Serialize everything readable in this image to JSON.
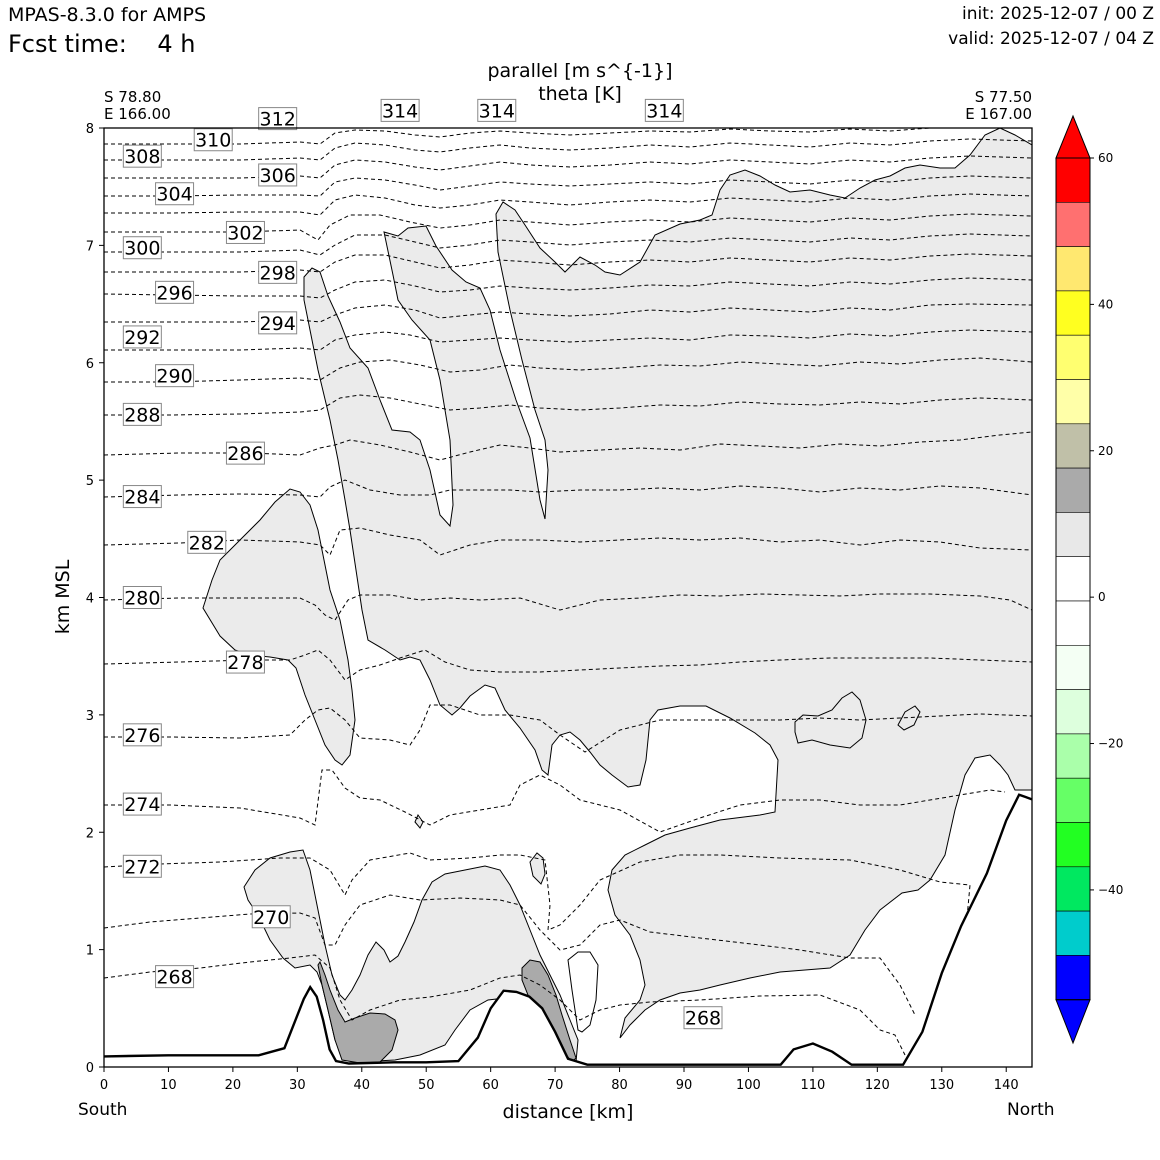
{
  "header": {
    "app": "MPAS-8.3.0 for AMPS",
    "fcst": "Fcst time:    4 h",
    "init": "init: 2025-12-07 / 00 Z",
    "valid": "valid: 2025-12-07 / 04 Z"
  },
  "cross_section": {
    "start_lat": "S 78.80",
    "start_lon": "E 166.00",
    "end_lat": "S 77.50",
    "end_lon": "E 167.00",
    "south_label": "South",
    "north_label": "North"
  },
  "chart_data": {
    "type": "cross-section contour",
    "title_line1": "parallel [m s^{-1}]",
    "title_line2": "theta [K]",
    "xlabel": "distance [km]",
    "ylabel": "km MSL",
    "xlim": [
      0,
      144
    ],
    "ylim": [
      0,
      8
    ],
    "xticks": [
      0,
      10,
      20,
      30,
      40,
      50,
      60,
      70,
      80,
      90,
      100,
      110,
      120,
      130,
      140
    ],
    "yticks": [
      0,
      1,
      2,
      3,
      4,
      5,
      6,
      7,
      8
    ],
    "theta_contour_labels": [
      {
        "label": "268",
        "x": 8,
        "y": 0.77
      },
      {
        "label": "268",
        "x": 90,
        "y": 0.42
      },
      {
        "label": "270",
        "x": 23,
        "y": 1.28
      },
      {
        "label": "272",
        "x": 3,
        "y": 1.71
      },
      {
        "label": "274",
        "x": 3,
        "y": 2.24
      },
      {
        "label": "276",
        "x": 3,
        "y": 2.83
      },
      {
        "label": "278",
        "x": 19,
        "y": 3.45
      },
      {
        "label": "280",
        "x": 3,
        "y": 4.0
      },
      {
        "label": "282",
        "x": 13,
        "y": 4.47
      },
      {
        "label": "284",
        "x": 3,
        "y": 4.86
      },
      {
        "label": "286",
        "x": 19,
        "y": 5.23
      },
      {
        "label": "288",
        "x": 3,
        "y": 5.56
      },
      {
        "label": "290",
        "x": 8,
        "y": 5.89
      },
      {
        "label": "292",
        "x": 3,
        "y": 6.22
      },
      {
        "label": "294",
        "x": 24,
        "y": 6.34
      },
      {
        "label": "296",
        "x": 8,
        "y": 6.6
      },
      {
        "label": "298",
        "x": 24,
        "y": 6.77
      },
      {
        "label": "300",
        "x": 3,
        "y": 6.98
      },
      {
        "label": "302",
        "x": 19,
        "y": 7.11
      },
      {
        "label": "304",
        "x": 8,
        "y": 7.44
      },
      {
        "label": "306",
        "x": 24,
        "y": 7.6
      },
      {
        "label": "308",
        "x": 3,
        "y": 7.76
      },
      {
        "label": "310",
        "x": 14,
        "y": 7.9
      },
      {
        "label": "312",
        "x": 24,
        "y": 8.08
      },
      {
        "label": "314",
        "x": 43,
        "y": 8.15
      },
      {
        "label": "314",
        "x": 58,
        "y": 8.15
      },
      {
        "label": "314",
        "x": 84,
        "y": 8.15
      }
    ],
    "colorbar": {
      "ticks": [
        "60",
        "40",
        "20",
        "0",
        "−20",
        "−40"
      ],
      "colors": [
        "#ff0000",
        "#ff0000",
        "#ff7070",
        "#ffe870",
        "#ffff20",
        "#ffff70",
        "#ffffa8",
        "#c0c0a8",
        "#aaaaaa",
        "#e8e8e8",
        "#ffffff",
        "#ffffff",
        "#f4fff4",
        "#ddffdd",
        "#aaffaa",
        "#66ff66",
        "#22ff22",
        "#00e860",
        "#00cccc",
        "#0000ff",
        "#0000ff"
      ]
    },
    "shading": {
      "light_gray": "#ebebeb",
      "dark_gray": "#aaaaaa"
    },
    "terrain_height_km": [
      [
        0,
        0.09
      ],
      [
        10,
        0.1
      ],
      [
        24,
        0.1
      ],
      [
        28,
        0.16
      ],
      [
        31,
        0.58
      ],
      [
        32,
        0.68
      ],
      [
        33,
        0.6
      ],
      [
        34,
        0.4
      ],
      [
        35,
        0.15
      ],
      [
        36,
        0.05
      ],
      [
        38,
        0.03
      ],
      [
        45,
        0.04
      ],
      [
        50,
        0.04
      ],
      [
        55,
        0.05
      ],
      [
        58,
        0.25
      ],
      [
        60,
        0.5
      ],
      [
        62,
        0.65
      ],
      [
        64,
        0.64
      ],
      [
        66,
        0.6
      ],
      [
        68,
        0.5
      ],
      [
        70,
        0.3
      ],
      [
        72,
        0.07
      ],
      [
        75,
        0.02
      ],
      [
        105,
        0.02
      ],
      [
        107,
        0.15
      ],
      [
        110,
        0.2
      ],
      [
        113,
        0.13
      ],
      [
        116,
        0.02
      ],
      [
        124,
        0.02
      ],
      [
        127,
        0.3
      ],
      [
        130,
        0.8
      ],
      [
        133,
        1.2
      ],
      [
        137,
        1.65
      ],
      [
        140,
        2.1
      ],
      [
        142,
        2.32
      ],
      [
        143,
        2.3
      ],
      [
        144,
        2.28
      ]
    ]
  }
}
